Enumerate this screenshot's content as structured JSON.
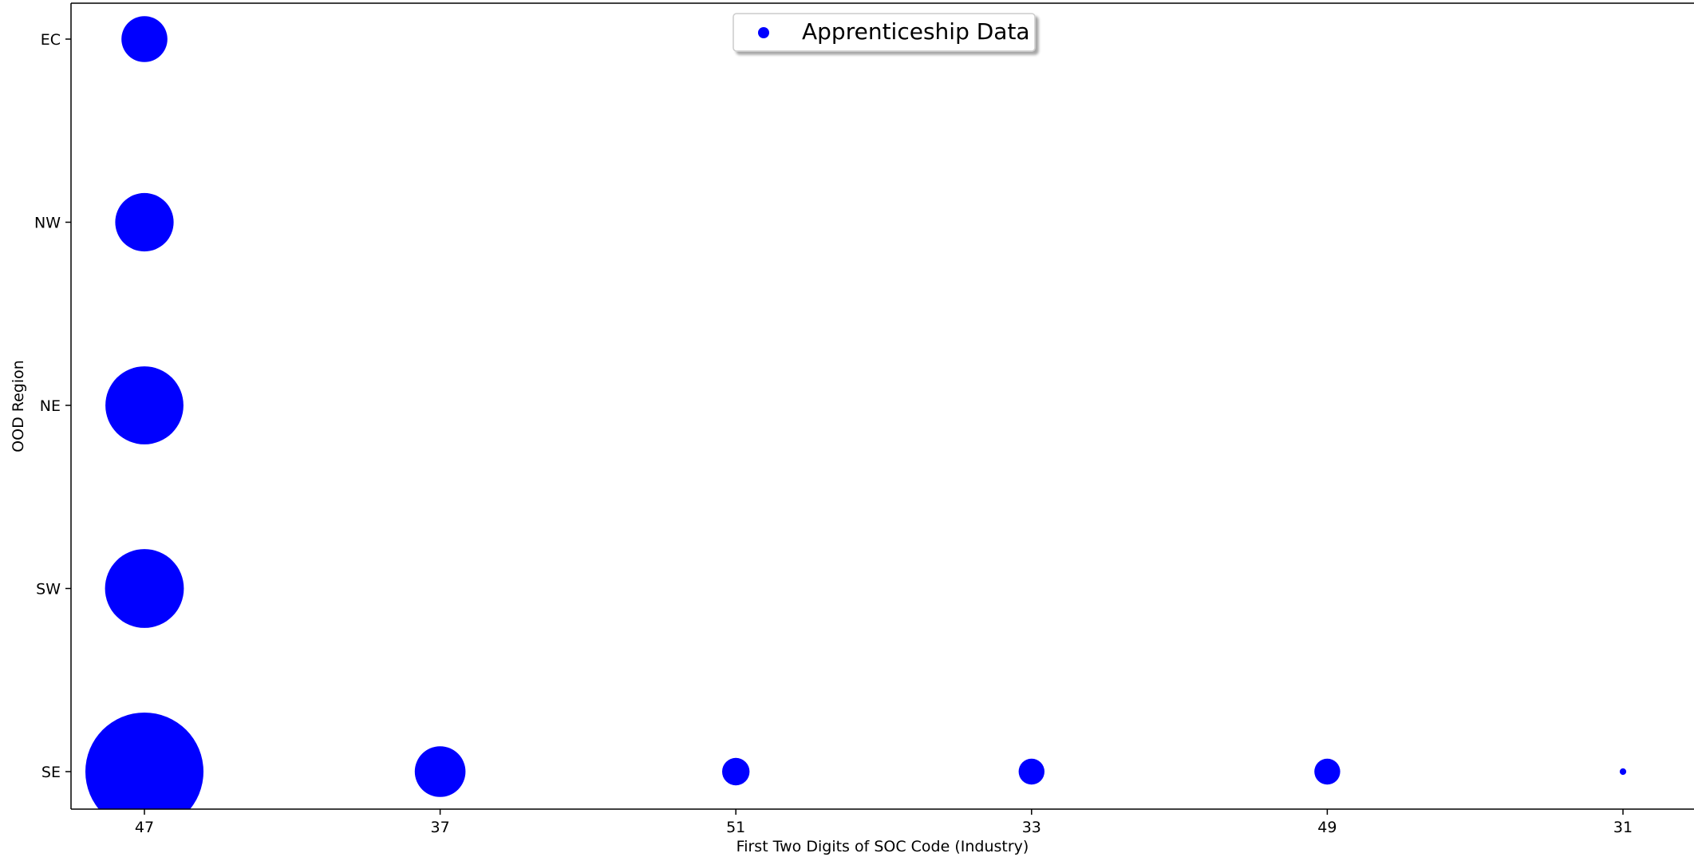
{
  "chart_data": {
    "type": "scatter",
    "title": "",
    "xlabel": "First Two Digits of SOC Code (Industry)",
    "ylabel": "OOD Region",
    "x_categories": [
      "47",
      "37",
      "51",
      "33",
      "49",
      "31"
    ],
    "y_categories": [
      "SE",
      "SW",
      "NE",
      "NW",
      "EC"
    ],
    "grid": false,
    "legend": {
      "position": "top-center",
      "entries": [
        "Apprenticeship Data"
      ]
    },
    "marker_color": "#0000ff",
    "size_encoding": "relative_size",
    "series": [
      {
        "name": "Apprenticeship Data",
        "points": [
          {
            "x": "47",
            "y": "EC",
            "relative_size": 0.151
          },
          {
            "x": "47",
            "y": "NW",
            "relative_size": 0.244
          },
          {
            "x": "47",
            "y": "NE",
            "relative_size": 0.437
          },
          {
            "x": "47",
            "y": "SW",
            "relative_size": 0.445
          },
          {
            "x": "47",
            "y": "SE",
            "relative_size": 1.0
          },
          {
            "x": "37",
            "y": "SE",
            "relative_size": 0.185
          },
          {
            "x": "51",
            "y": "SE",
            "relative_size": 0.054
          },
          {
            "x": "33",
            "y": "SE",
            "relative_size": 0.048
          },
          {
            "x": "49",
            "y": "SE",
            "relative_size": 0.048
          },
          {
            "x": "31",
            "y": "SE",
            "relative_size": 0.003
          }
        ]
      }
    ]
  }
}
